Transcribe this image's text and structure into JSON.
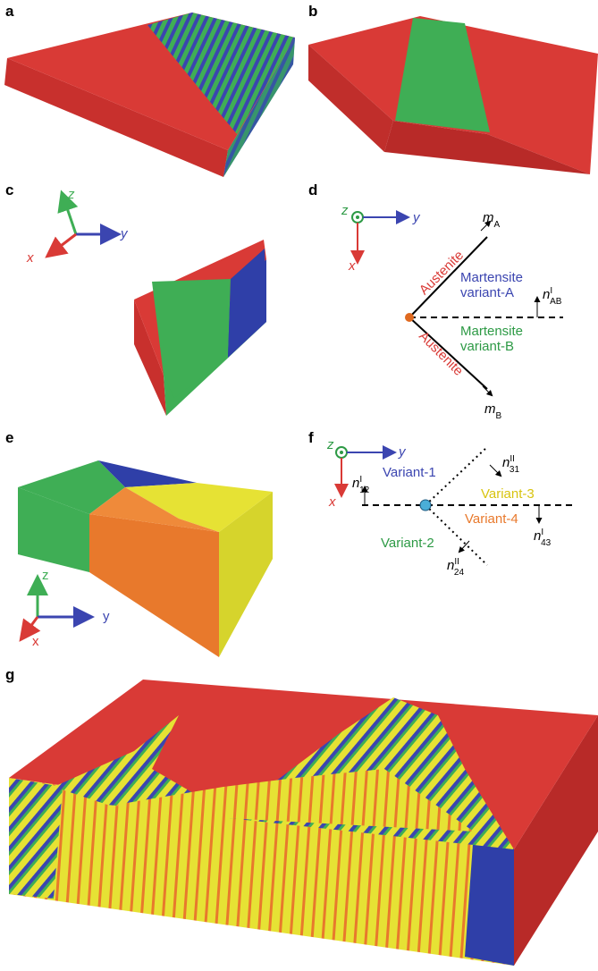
{
  "panels": {
    "a": {
      "label": "a"
    },
    "b": {
      "label": "b"
    },
    "c": {
      "label": "c",
      "axes": {
        "x": "x",
        "y": "y",
        "z": "z"
      }
    },
    "d": {
      "label": "d",
      "axes": {
        "x": "x",
        "y": "y",
        "z": "z"
      },
      "m_a": {
        "base": "m",
        "sub": "A"
      },
      "austenite_upper": "Austenite",
      "martensite_a": [
        "Martensite",
        "variant-A"
      ],
      "n_ab": {
        "base": "n",
        "sup": "I",
        "sub": "AB"
      },
      "martensite_b": [
        "Martensite",
        "variant-B"
      ],
      "austenite_lower": "Austenite",
      "m_b": {
        "base": "m",
        "sub": "B"
      }
    },
    "e": {
      "label": "e",
      "axes": {
        "x": "x",
        "y": "y",
        "z": "z"
      }
    },
    "f": {
      "label": "f",
      "axes": {
        "x": "x",
        "y": "y",
        "z": "z"
      },
      "n_12": {
        "base": "n",
        "sup": "I",
        "sub": "12"
      },
      "variant_1": "Variant-1",
      "n_31": {
        "base": "n",
        "sup": "II",
        "sub": "31"
      },
      "variant_3": "Variant-3",
      "variant_4": "Variant-4",
      "n_43": {
        "base": "n",
        "sup": "I",
        "sub": "43"
      },
      "variant_2": "Variant-2",
      "n_24": {
        "base": "n",
        "sup": "II",
        "sub": "24"
      }
    },
    "g": {
      "label": "g"
    }
  }
}
